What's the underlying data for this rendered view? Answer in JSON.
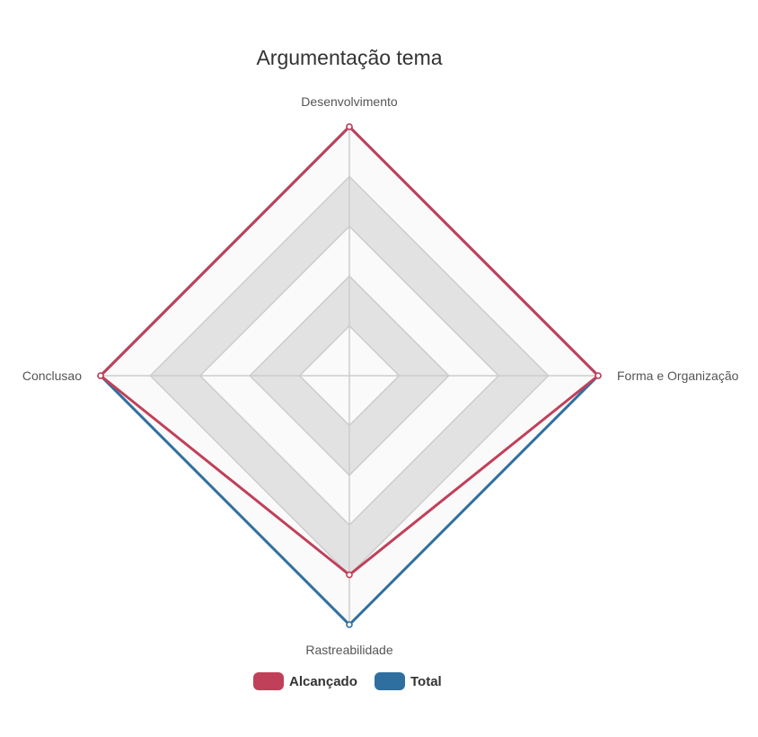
{
  "chart_data": {
    "type": "radar",
    "title": "Argumentação tema",
    "axes": [
      "Desenvolvimento",
      "Forma e Organização",
      "Rastreabilidade",
      "Conclusao"
    ],
    "rmax": 5,
    "rings": 5,
    "series": [
      {
        "name": "Alcançado",
        "values": [
          5,
          5,
          4,
          5
        ],
        "color": "#c0405a"
      },
      {
        "name": "Total",
        "values": [
          5,
          5,
          5,
          5
        ],
        "color": "#2f6fa0"
      }
    ],
    "legend": "bottom",
    "grid": true
  }
}
